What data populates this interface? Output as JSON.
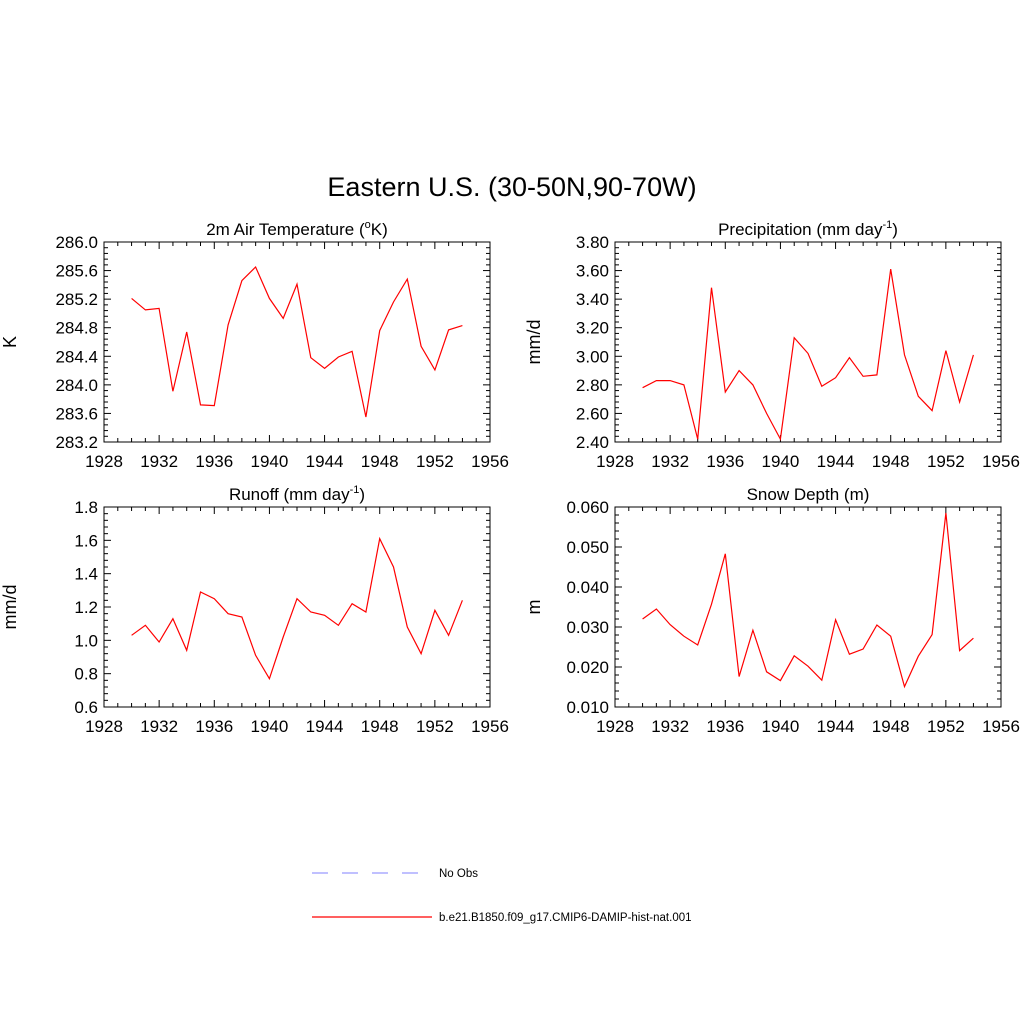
{
  "suptitle": "Eastern U.S. (30-50N,90-70W)",
  "colors": {
    "model": "#ff0000",
    "obs": "#9b9bff",
    "axis": "#000000"
  },
  "legend": {
    "items": [
      {
        "label": "No Obs",
        "style": "dashed",
        "color": "#9b9bff"
      },
      {
        "label": "b.e21.B1850.f09_g17.CMIP6-DAMIP-hist-nat.001",
        "style": "solid",
        "color": "#ff0000"
      }
    ]
  },
  "chart_data": [
    {
      "type": "line",
      "title": "2m Air Temperature (",
      "title_sup": "o",
      "title_tail": "K)",
      "ylabel": "K",
      "xlim": [
        1928,
        1956
      ],
      "ylim": [
        283.2,
        286.0
      ],
      "xticks": [
        1928,
        1932,
        1936,
        1940,
        1944,
        1948,
        1952,
        1956
      ],
      "yticks": [
        "283.2",
        "283.6",
        "284.0",
        "284.4",
        "284.8",
        "285.2",
        "285.6",
        "286.0"
      ],
      "x": [
        1930,
        1931,
        1932,
        1933,
        1934,
        1935,
        1936,
        1937,
        1938,
        1939,
        1940,
        1941,
        1942,
        1943,
        1944,
        1945,
        1946,
        1947,
        1948,
        1949,
        1950,
        1951,
        1952,
        1953,
        1954
      ],
      "series": [
        {
          "values": [
            285.21,
            285.05,
            285.07,
            283.91,
            284.74,
            283.72,
            283.71,
            284.84,
            285.46,
            285.65,
            285.21,
            284.93,
            285.41,
            284.38,
            284.23,
            284.39,
            284.47,
            283.55,
            284.76,
            285.16,
            285.48,
            284.54,
            284.21,
            284.77,
            284.83
          ]
        }
      ]
    },
    {
      "type": "line",
      "title": "Precipitation (mm day",
      "title_sup": "-1",
      "title_tail": ")",
      "ylabel": "mm/d",
      "xlim": [
        1928,
        1956
      ],
      "ylim": [
        2.4,
        3.8
      ],
      "xticks": [
        1928,
        1932,
        1936,
        1940,
        1944,
        1948,
        1952,
        1956
      ],
      "yticks": [
        "2.40",
        "2.60",
        "2.80",
        "3.00",
        "3.20",
        "3.40",
        "3.60",
        "3.80"
      ],
      "x": [
        1930,
        1931,
        1932,
        1933,
        1934,
        1935,
        1936,
        1937,
        1938,
        1939,
        1940,
        1941,
        1942,
        1943,
        1944,
        1945,
        1946,
        1947,
        1948,
        1949,
        1950,
        1951,
        1952,
        1953,
        1954
      ],
      "series": [
        {
          "values": [
            2.78,
            2.83,
            2.83,
            2.8,
            2.42,
            3.48,
            2.75,
            2.9,
            2.8,
            2.6,
            2.42,
            3.13,
            3.02,
            2.79,
            2.85,
            2.99,
            2.86,
            2.87,
            3.61,
            3.01,
            2.72,
            2.62,
            3.04,
            2.68,
            3.01
          ]
        }
      ]
    },
    {
      "type": "line",
      "title": "Runoff (mm day",
      "title_sup": "-1",
      "title_tail": ")",
      "ylabel": "mm/d",
      "xlim": [
        1928,
        1956
      ],
      "ylim": [
        0.6,
        1.8
      ],
      "xticks": [
        1928,
        1932,
        1936,
        1940,
        1944,
        1948,
        1952,
        1956
      ],
      "yticks": [
        "0.6",
        "0.8",
        "1.0",
        "1.2",
        "1.4",
        "1.6",
        "1.8"
      ],
      "x": [
        1930,
        1931,
        1932,
        1933,
        1934,
        1935,
        1936,
        1937,
        1938,
        1939,
        1940,
        1941,
        1942,
        1943,
        1944,
        1945,
        1946,
        1947,
        1948,
        1949,
        1950,
        1951,
        1952,
        1953,
        1954
      ],
      "series": [
        {
          "values": [
            1.03,
            1.09,
            0.99,
            1.13,
            0.94,
            1.29,
            1.25,
            1.16,
            1.14,
            0.91,
            0.77,
            1.02,
            1.25,
            1.17,
            1.15,
            1.09,
            1.22,
            1.17,
            1.61,
            1.44,
            1.08,
            0.92,
            1.18,
            1.03,
            1.24
          ]
        }
      ]
    },
    {
      "type": "line",
      "title": "Snow Depth (m)",
      "title_sup": "",
      "title_tail": "",
      "ylabel": "m",
      "xlim": [
        1928,
        1956
      ],
      "ylim": [
        0.01,
        0.06
      ],
      "xticks": [
        1928,
        1932,
        1936,
        1940,
        1944,
        1948,
        1952,
        1956
      ],
      "yticks": [
        "0.010",
        "0.020",
        "0.030",
        "0.040",
        "0.050",
        "0.060"
      ],
      "x": [
        1930,
        1931,
        1932,
        1933,
        1934,
        1935,
        1936,
        1937,
        1938,
        1939,
        1940,
        1941,
        1942,
        1943,
        1944,
        1945,
        1946,
        1947,
        1948,
        1949,
        1950,
        1951,
        1952,
        1953,
        1954
      ],
      "series": [
        {
          "values": [
            0.032,
            0.0345,
            0.0306,
            0.0277,
            0.0255,
            0.0357,
            0.0483,
            0.0176,
            0.0292,
            0.0188,
            0.0166,
            0.0228,
            0.0202,
            0.0167,
            0.0318,
            0.0232,
            0.0245,
            0.0305,
            0.0277,
            0.0151,
            0.0227,
            0.0281,
            0.0585,
            0.0241,
            0.0272
          ]
        }
      ]
    }
  ]
}
